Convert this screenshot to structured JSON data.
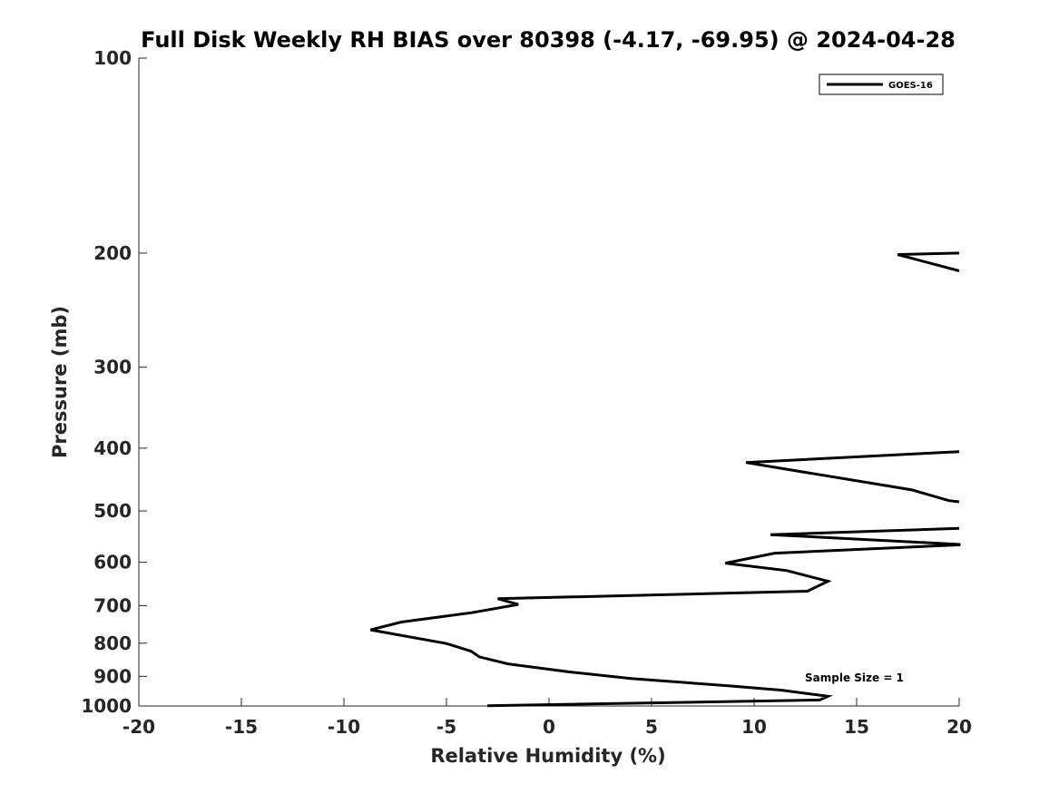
{
  "chart_data": {
    "type": "line",
    "title": "Full Disk Weekly RH BIAS over 80398 (-4.17, -69.95) @ 2024-04-28",
    "xlabel": "Relative Humidity (%)",
    "ylabel": "Pressure (mb)",
    "xlim": [
      -20,
      20
    ],
    "ylim": [
      1000,
      100
    ],
    "y_scale": "log",
    "x_ticks": [
      "-20",
      "-15",
      "-10",
      "-5",
      "0",
      "5",
      "10",
      "15",
      "20"
    ],
    "y_ticks": [
      "100",
      "200",
      "300",
      "400",
      "500",
      "600",
      "700",
      "800",
      "900",
      "1000"
    ],
    "grid": false,
    "legend_position": "top-right",
    "series": [
      {
        "name": "GOES-16",
        "color": "#000000",
        "segments": [
          [
            [
              20,
              200
            ],
            [
              17,
              201
            ],
            [
              20,
              213
            ]
          ],
          [
            [
              20,
              405
            ],
            [
              9.6,
              421
            ],
            [
              17.7,
              464
            ],
            [
              19.5,
              482
            ],
            [
              20,
              484
            ]
          ],
          [
            [
              20,
              532
            ],
            [
              10.8,
              544
            ],
            [
              20,
              563
            ],
            [
              20,
              564
            ],
            [
              11,
              581
            ],
            [
              8.6,
              602
            ],
            [
              11.6,
              618
            ],
            [
              13.6,
              642
            ],
            [
              12.6,
              665
            ],
            [
              -2.5,
              683
            ],
            [
              -1.5,
              697
            ],
            [
              -3.8,
              718
            ],
            [
              -7.2,
              742
            ],
            [
              -8.7,
              763
            ],
            [
              -5,
              801
            ],
            [
              -3.8,
              823
            ],
            [
              -3.4,
              840
            ],
            [
              -2,
              861
            ],
            [
              1,
              886
            ],
            [
              4,
              907
            ],
            [
              8.6,
              930
            ],
            [
              11.3,
              945
            ],
            [
              13.6,
              966
            ],
            [
              13.2,
              979
            ],
            [
              -3,
              999
            ]
          ]
        ]
      }
    ],
    "annotations": [
      "Sample Size = 1"
    ]
  }
}
